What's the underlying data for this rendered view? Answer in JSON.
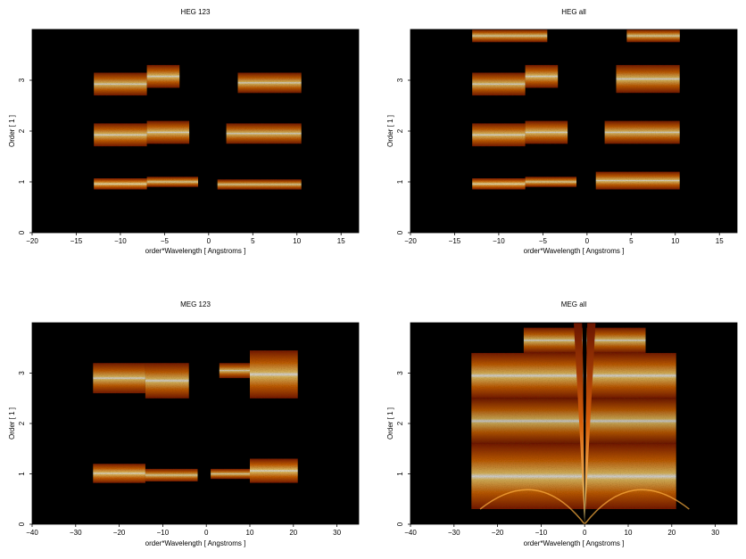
{
  "chart_data": [
    {
      "type": "heatmap",
      "title": "HEG 123",
      "xlabel": "order*Wavelength [ Angstroms ]",
      "ylabel": "Order [ 1 ]",
      "xlim": [
        -20,
        17
      ],
      "ylim": [
        0,
        4
      ],
      "xticks": [
        -20,
        -15,
        -10,
        -5,
        0,
        5,
        10,
        15
      ],
      "yticks": [
        0,
        1,
        2,
        3
      ],
      "colormap": [
        "#000000",
        "#5a0c00",
        "#a02800",
        "#d85a00",
        "#f39a18",
        "#ffe070",
        "#ffffff"
      ],
      "regions": [
        {
          "order": 1,
          "x": [
            -13,
            -7
          ],
          "y": [
            0.85,
            1.07
          ],
          "intensity": 0.7
        },
        {
          "order": 1,
          "x": [
            -7,
            -1.2
          ],
          "y": [
            0.9,
            1.1
          ],
          "intensity": 0.6
        },
        {
          "order": 1,
          "x": [
            1,
            10.5
          ],
          "y": [
            0.85,
            1.05
          ],
          "intensity": 0.55
        },
        {
          "order": 2,
          "x": [
            -13,
            -7
          ],
          "y": [
            1.7,
            2.15
          ],
          "intensity": 0.6
        },
        {
          "order": 2,
          "x": [
            -7,
            -2.2
          ],
          "y": [
            1.75,
            2.2
          ],
          "intensity": 0.6
        },
        {
          "order": 2,
          "x": [
            2,
            10.5
          ],
          "y": [
            1.75,
            2.15
          ],
          "intensity": 0.55
        },
        {
          "order": 3,
          "x": [
            -13,
            -7
          ],
          "y": [
            2.7,
            3.15
          ],
          "intensity": 0.55
        },
        {
          "order": 3,
          "x": [
            -7,
            -3.3
          ],
          "y": [
            2.85,
            3.3
          ],
          "intensity": 0.6
        },
        {
          "order": 3,
          "x": [
            3.3,
            10.5
          ],
          "y": [
            2.75,
            3.15
          ],
          "intensity": 0.55
        }
      ]
    },
    {
      "type": "heatmap",
      "title": "HEG all",
      "xlabel": "order*Wavelength [ Angstroms ]",
      "ylabel": "Order [ 1 ]",
      "xlim": [
        -20,
        17
      ],
      "ylim": [
        0,
        4
      ],
      "xticks": [
        -20,
        -15,
        -10,
        -5,
        0,
        5,
        10,
        15
      ],
      "yticks": [
        0,
        1,
        2,
        3
      ],
      "regions": [
        {
          "order": 1,
          "x": [
            -13,
            -7
          ],
          "y": [
            0.85,
            1.07
          ],
          "intensity": 0.7
        },
        {
          "order": 1,
          "x": [
            -7,
            -1.2
          ],
          "y": [
            0.9,
            1.1
          ],
          "intensity": 0.6
        },
        {
          "order": 1,
          "x": [
            1,
            10.5
          ],
          "y": [
            0.85,
            1.2
          ],
          "intensity": 0.6
        },
        {
          "order": 2,
          "x": [
            -13,
            -7
          ],
          "y": [
            1.7,
            2.15
          ],
          "intensity": 0.6
        },
        {
          "order": 2,
          "x": [
            -7,
            -2.2
          ],
          "y": [
            1.75,
            2.2
          ],
          "intensity": 0.6
        },
        {
          "order": 2,
          "x": [
            2,
            10.5
          ],
          "y": [
            1.75,
            2.2
          ],
          "intensity": 0.55
        },
        {
          "order": 3,
          "x": [
            -13,
            -7
          ],
          "y": [
            2.7,
            3.15
          ],
          "intensity": 0.55
        },
        {
          "order": 3,
          "x": [
            -7,
            -3.3
          ],
          "y": [
            2.85,
            3.3
          ],
          "intensity": 0.6
        },
        {
          "order": 3,
          "x": [
            3.3,
            10.5
          ],
          "y": [
            2.75,
            3.3
          ],
          "intensity": 0.55
        },
        {
          "order": 4,
          "x": [
            -13,
            -4.5
          ],
          "y": [
            3.75,
            4.0
          ],
          "intensity": 0.55
        },
        {
          "order": 4,
          "x": [
            4.5,
            10.5
          ],
          "y": [
            3.75,
            4.0
          ],
          "intensity": 0.55
        }
      ]
    },
    {
      "type": "heatmap",
      "title": "MEG 123",
      "xlabel": "order*Wavelength [ Angstroms ]",
      "ylabel": "Order [ 1 ]",
      "xlim": [
        -40,
        35
      ],
      "ylim": [
        0,
        4
      ],
      "xticks": [
        -40,
        -30,
        -20,
        -10,
        0,
        10,
        20,
        30
      ],
      "yticks": [
        0,
        1,
        2,
        3
      ],
      "regions": [
        {
          "order": 1,
          "x": [
            -26,
            -14
          ],
          "y": [
            0.82,
            1.2
          ],
          "intensity": 0.65
        },
        {
          "order": 1,
          "x": [
            -14,
            -2
          ],
          "y": [
            0.85,
            1.1
          ],
          "intensity": 0.55
        },
        {
          "order": 1,
          "x": [
            1,
            10
          ],
          "y": [
            0.9,
            1.1
          ],
          "intensity": 0.55
        },
        {
          "order": 1,
          "x": [
            10,
            21
          ],
          "y": [
            0.82,
            1.3
          ],
          "intensity": 0.65
        },
        {
          "order": 3,
          "x": [
            -26,
            -14
          ],
          "y": [
            2.6,
            3.2
          ],
          "intensity": 0.55
        },
        {
          "order": 3,
          "x": [
            -14,
            -4
          ],
          "y": [
            2.5,
            3.2
          ],
          "intensity": 0.55
        },
        {
          "order": 3,
          "x": [
            3,
            10
          ],
          "y": [
            2.9,
            3.2
          ],
          "intensity": 0.55
        },
        {
          "order": 3,
          "x": [
            10,
            21
          ],
          "y": [
            2.5,
            3.45
          ],
          "intensity": 0.6
        }
      ]
    },
    {
      "type": "heatmap",
      "title": "MEG all",
      "xlabel": "order*Wavelength [ Angstroms ]",
      "ylabel": "Order [ 1 ]",
      "xlim": [
        -40,
        35
      ],
      "ylim": [
        0,
        4
      ],
      "xticks": [
        -40,
        -30,
        -20,
        -10,
        0,
        10,
        20,
        30
      ],
      "yticks": [
        0,
        1,
        2,
        3
      ],
      "regions": [
        {
          "order": 1,
          "x": [
            -26,
            21
          ],
          "y": [
            0.3,
            1.6
          ],
          "intensity": 0.55
        },
        {
          "order": 2,
          "x": [
            -26,
            21
          ],
          "y": [
            1.6,
            2.5
          ],
          "intensity": 0.45
        },
        {
          "order": 3,
          "x": [
            -26,
            21
          ],
          "y": [
            2.5,
            3.4
          ],
          "intensity": 0.55
        },
        {
          "order": 4,
          "x": [
            -14,
            14
          ],
          "y": [
            3.4,
            3.9
          ],
          "intensity": 0.5
        }
      ]
    }
  ]
}
